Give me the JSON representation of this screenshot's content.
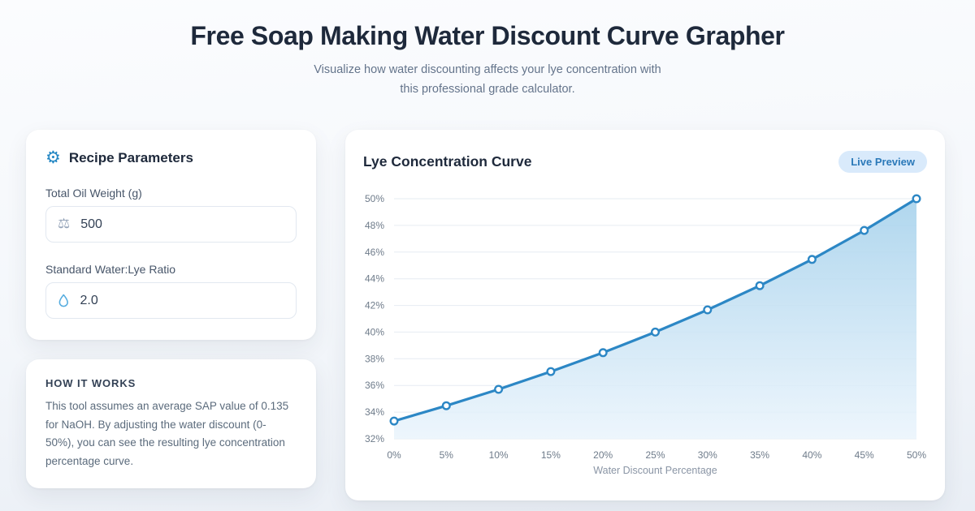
{
  "header": {
    "title": "Free Soap Making Water Discount Curve Grapher",
    "subtitle_line1": "Visualize how water discounting affects your lye concentration with",
    "subtitle_line2": "this professional grade calculator."
  },
  "recipe_panel": {
    "title": "Recipe Parameters",
    "fields": [
      {
        "label": "Total Oil Weight (g)",
        "value": "500",
        "icon": "scale-icon"
      },
      {
        "label": "Standard Water:Lye Ratio",
        "value": "2.0",
        "icon": "droplet-icon"
      }
    ]
  },
  "how_it_works": {
    "title": "HOW IT WORKS",
    "body": "This tool assumes an average SAP value of 0.135 for NaOH. By adjusting the water discount (0-50%), you can see the resulting lye concentration percentage curve."
  },
  "chart_panel": {
    "title": "Lye Concentration Curve",
    "badge": "Live Preview"
  },
  "chart_data": {
    "type": "area",
    "title": "Lye Concentration Curve",
    "x": [
      0,
      5,
      10,
      15,
      20,
      25,
      30,
      35,
      40,
      45,
      50
    ],
    "x_tick_labels": [
      "0%",
      "5%",
      "10%",
      "15%",
      "20%",
      "25%",
      "30%",
      "35%",
      "40%",
      "45%",
      "50%"
    ],
    "values": [
      33.33,
      34.48,
      35.71,
      37.04,
      38.46,
      40.0,
      41.67,
      43.48,
      45.45,
      47.62,
      50.0
    ],
    "xlabel": "Water Discount Percentage",
    "ylim": [
      32,
      50
    ],
    "y_tick_step": 2,
    "y_tick_suffix": "%",
    "grid": "horizontal",
    "legend": "none",
    "colors": {
      "line": "#2c87c5",
      "point_fill": "#ffffff",
      "area_top": "#a7d2ec",
      "area_bottom": "#eaf4fc",
      "grid": "#e6ecf2",
      "tick": "#6e7b8a",
      "axis_title": "#8a95a5"
    }
  }
}
